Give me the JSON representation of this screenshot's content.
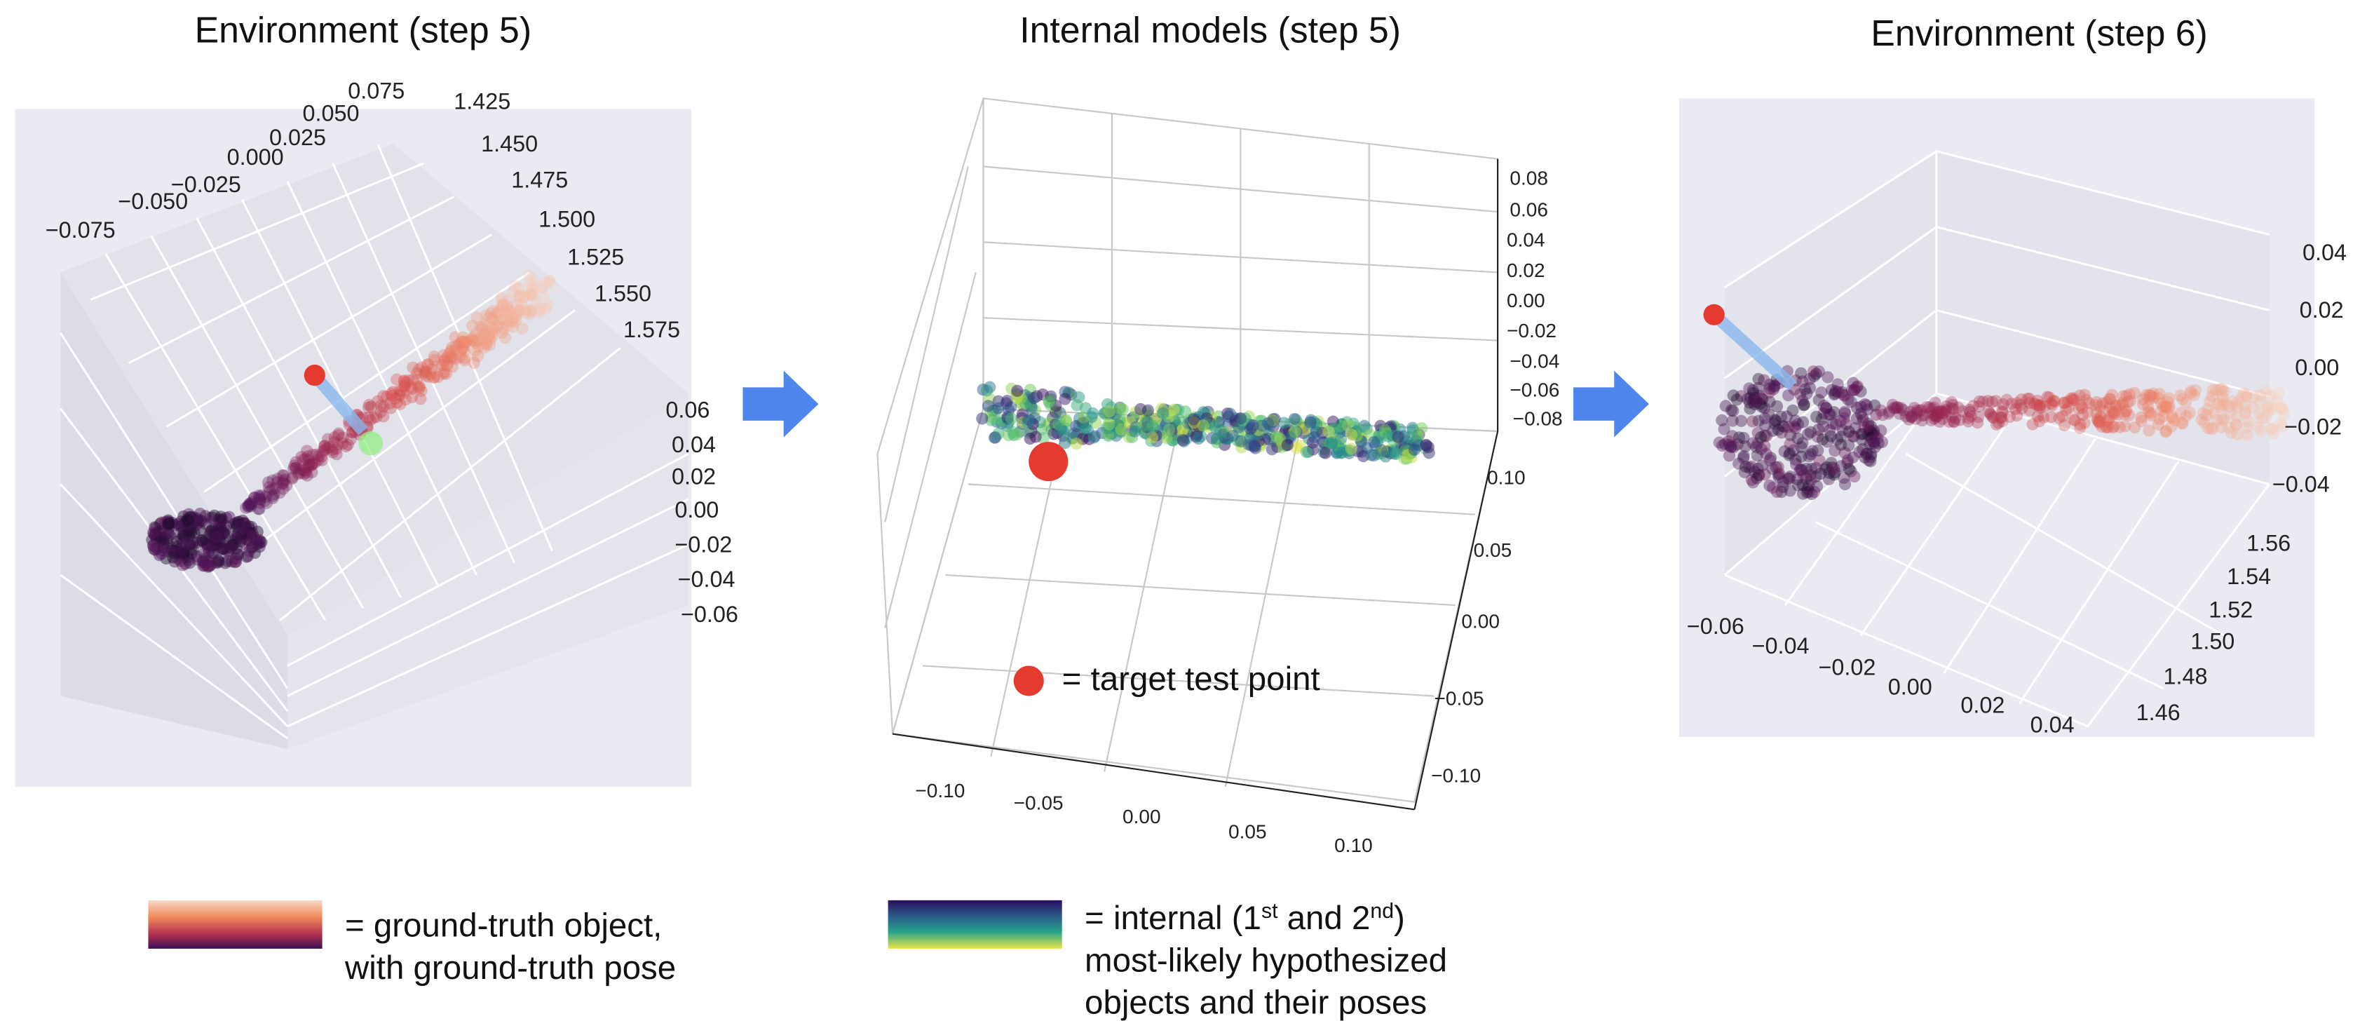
{
  "panels": [
    {
      "title": "Environment (step 5)",
      "ticks_a": [
        "−0.075",
        "−0.050",
        "−0.025",
        "0.000",
        "0.025",
        "0.050",
        "0.075"
      ],
      "ticks_b": [
        "1.425",
        "1.450",
        "1.475",
        "1.500",
        "1.525",
        "1.550",
        "1.575"
      ],
      "ticks_c": [
        "0.06",
        "0.04",
        "0.02",
        "0.00",
        "−0.02",
        "−0.04",
        "−0.06"
      ]
    },
    {
      "title": "Internal models (step 5)",
      "ticks_a": [
        "0.08",
        "0.06",
        "0.04",
        "0.02",
        "0.00",
        "−0.02",
        "−0.04",
        "−0.06",
        "−0.08"
      ],
      "ticks_b": [
        "0.10",
        "0.05",
        "0.00",
        "−0.05",
        "−0.10"
      ],
      "ticks_c": [
        "−0.10",
        "−0.05",
        "0.00",
        "0.05",
        "0.10"
      ],
      "annotation": "= target test point"
    },
    {
      "title": "Environment (step 6)",
      "ticks_a": [
        "0.04",
        "0.02",
        "0.00",
        "−0.02",
        "−0.04"
      ],
      "ticks_b": [
        "1.56",
        "1.54",
        "1.52",
        "1.50",
        "1.48",
        "1.46"
      ],
      "ticks_c": [
        "−0.06",
        "−0.04",
        "−0.02",
        "0.00",
        "0.02",
        "0.04"
      ]
    }
  ],
  "legend": [
    {
      "lines": [
        [
          "= ground-truth object,"
        ],
        [
          "with ground-truth pose"
        ]
      ]
    },
    {
      "lines": [
        [
          "= internal (1",
          "st",
          " and 2",
          "nd",
          ")"
        ],
        [
          "most-likely hypothesized"
        ],
        [
          "objects and their poses"
        ]
      ]
    }
  ]
}
